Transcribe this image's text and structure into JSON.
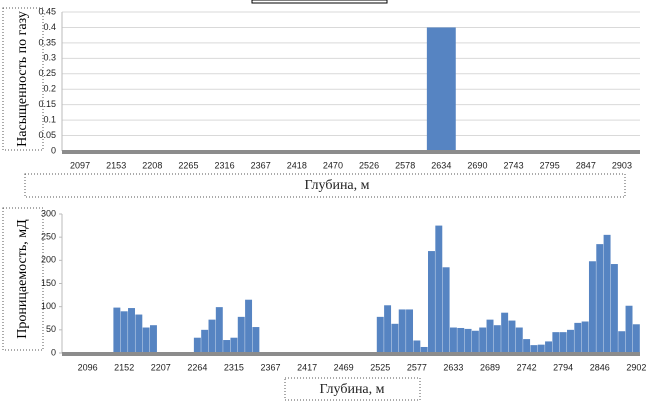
{
  "chart_data": [
    {
      "type": "bar",
      "y_label": "Насыщенность по газу",
      "x_label": "Глубина, м",
      "categories": [
        "2097",
        "2153",
        "2208",
        "2265",
        "2316",
        "2367",
        "2418",
        "2470",
        "2526",
        "2578",
        "2634",
        "2690",
        "2743",
        "2795",
        "2847",
        "2903"
      ],
      "values": [
        0,
        0,
        0,
        0,
        0,
        0,
        0,
        0,
        0,
        0,
        0.4,
        0,
        0,
        0,
        0,
        0
      ],
      "color": "#5684c2",
      "ylim": [
        0,
        0.45
      ],
      "yticks": [
        0,
        0.05,
        0.1,
        0.15,
        0.2,
        0.25,
        0.3,
        0.35,
        0.4,
        0.45
      ],
      "grid": true
    },
    {
      "type": "bar",
      "y_label": "Проницаемость, мД",
      "x_label": "Глубина, м",
      "categories": [
        null,
        null,
        null,
        "2096",
        null,
        null,
        null,
        null,
        "2152",
        null,
        null,
        null,
        null,
        "2207",
        null,
        null,
        null,
        null,
        "2264",
        null,
        null,
        null,
        null,
        "2315",
        null,
        null,
        null,
        null,
        "2367",
        null,
        null,
        null,
        null,
        "2417",
        null,
        null,
        null,
        null,
        "2469",
        null,
        null,
        null,
        null,
        "2525",
        null,
        null,
        null,
        null,
        "2577",
        null,
        null,
        null,
        null,
        "2633",
        null,
        null,
        null,
        null,
        "2689",
        null,
        null,
        null,
        null,
        "2742",
        null,
        null,
        null,
        null,
        "2794",
        null,
        null,
        null,
        null,
        "2846",
        null,
        null,
        null,
        null,
        "2902"
      ],
      "values": [
        0,
        0,
        0,
        0,
        0,
        0,
        0,
        98,
        90,
        97,
        83,
        55,
        60,
        0,
        0,
        0,
        0,
        0,
        33,
        50,
        72,
        99,
        28,
        33,
        78,
        115,
        56,
        0,
        0,
        0,
        0,
        0,
        0,
        0,
        0,
        0,
        0,
        0,
        0,
        0,
        0,
        0,
        0,
        78,
        103,
        63,
        94,
        94,
        27,
        13,
        220,
        275,
        185,
        55,
        54,
        52,
        48,
        55,
        72,
        60,
        87,
        70,
        55,
        30,
        17,
        18,
        25,
        45,
        45,
        50,
        65,
        68,
        198,
        235,
        255,
        192,
        47,
        102,
        62
      ],
      "color": "#5684c2",
      "ylim": [
        0,
        300
      ],
      "yticks": [
        0,
        50,
        100,
        150,
        200,
        250,
        300
      ],
      "grid": false
    }
  ]
}
